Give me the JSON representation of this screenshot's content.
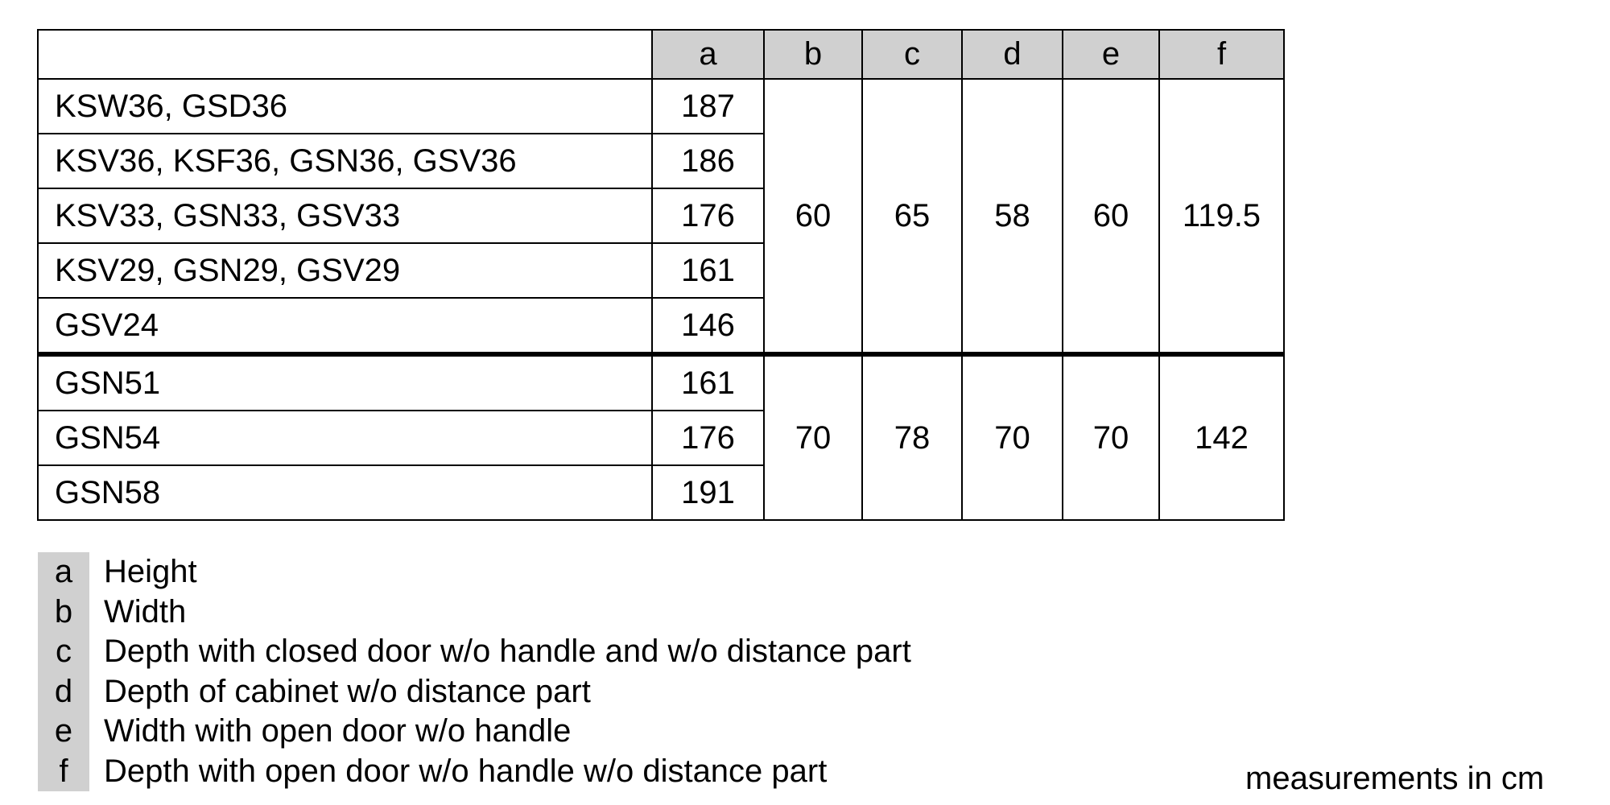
{
  "table": {
    "headers": [
      "",
      "a",
      "b",
      "c",
      "d",
      "e",
      "f"
    ],
    "groups": [
      {
        "rows": [
          {
            "model": "KSW36, GSD36",
            "a": "187"
          },
          {
            "model": "KSV36, KSF36, GSN36, GSV36",
            "a": "186"
          },
          {
            "model": "KSV33, GSN33, GSV33",
            "a": "176"
          },
          {
            "model": "KSV29, GSN29, GSV29",
            "a": "161"
          },
          {
            "model": "GSV24",
            "a": "146"
          }
        ],
        "shared": {
          "b": "60",
          "c": "65",
          "d": "58",
          "e": "60",
          "f": "119.5"
        }
      },
      {
        "rows": [
          {
            "model": "GSN51",
            "a": "161"
          },
          {
            "model": "GSN54",
            "a": "176"
          },
          {
            "model": "GSN58",
            "a": "191"
          }
        ],
        "shared": {
          "b": "70",
          "c": "78",
          "d": "70",
          "e": "70",
          "f": "142"
        }
      }
    ]
  },
  "legend": [
    {
      "key": "a",
      "label": "Height"
    },
    {
      "key": "b",
      "label": "Width"
    },
    {
      "key": "c",
      "label": "Depth with closed door w/o handle and w/o distance part"
    },
    {
      "key": "d",
      "label": "Depth of cabinet w/o distance part"
    },
    {
      "key": "e",
      "label": "Width with open door w/o handle"
    },
    {
      "key": "f",
      "label": "Depth with open door w/o handle w/o distance part"
    }
  ],
  "units_note": "measurements in cm",
  "colors": {
    "header_bg": "#d0d0d0",
    "border": "#000000"
  }
}
